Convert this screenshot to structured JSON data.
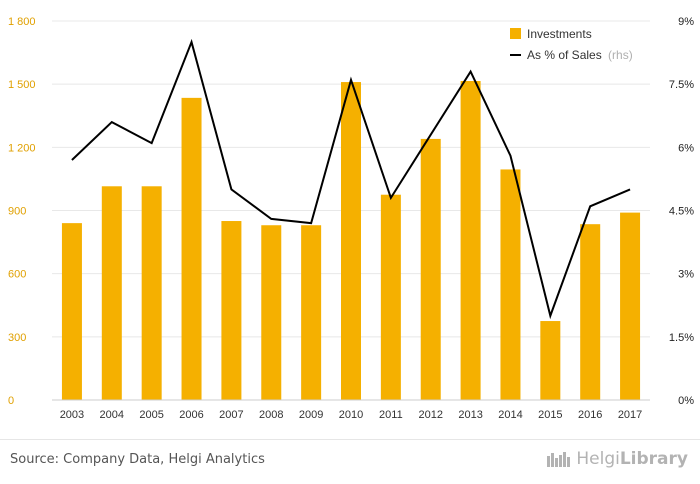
{
  "chart_data": {
    "type": "bar",
    "categories": [
      "2003",
      "2004",
      "2005",
      "2006",
      "2007",
      "2008",
      "2009",
      "2010",
      "2011",
      "2012",
      "2013",
      "2014",
      "2015",
      "2016",
      "2017"
    ],
    "series": [
      {
        "name": "Investments",
        "type": "bar",
        "axis": "left",
        "color": "#f5b000",
        "values": [
          840,
          1015,
          1015,
          1435,
          850,
          830,
          830,
          1510,
          975,
          1240,
          1515,
          1095,
          375,
          835,
          890
        ]
      },
      {
        "name": "As % of Sales",
        "type": "line",
        "axis": "right",
        "color": "#000000",
        "values": [
          5.7,
          6.6,
          6.1,
          8.5,
          5.0,
          4.3,
          4.2,
          7.6,
          4.8,
          6.3,
          7.8,
          5.8,
          2.0,
          4.6,
          5.0
        ]
      }
    ],
    "left_axis": {
      "ticks": [
        "0",
        "300",
        "600",
        "900",
        "1 200",
        "1 500",
        "1 800"
      ],
      "ylim": [
        0,
        1800
      ],
      "tick_color": "#e0a000"
    },
    "right_axis": {
      "ticks": [
        "0%",
        "1.5%",
        "3%",
        "4.5%",
        "6%",
        "7.5%",
        "9%"
      ],
      "ylim": [
        0,
        9
      ]
    },
    "legend": {
      "position": "top-right",
      "items": [
        {
          "label": "Investments",
          "suffix": ""
        },
        {
          "label": "As % of Sales",
          "suffix": "(rhs)"
        }
      ]
    },
    "grid": true
  },
  "footer": {
    "source": "Source: Company Data, Helgi Analytics",
    "logo_light": "Helgi",
    "logo_bold": "Library"
  }
}
